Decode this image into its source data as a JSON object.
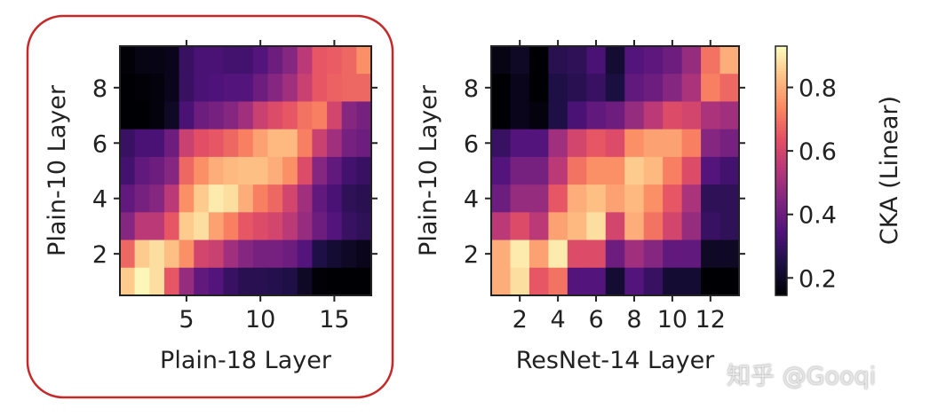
{
  "chart_data": [
    {
      "type": "heatmap",
      "xlabel": "Plain-18 Layer",
      "ylabel": "Plain-10 Layer",
      "xticks": [
        5,
        10,
        15
      ],
      "yticks": [
        2,
        4,
        6,
        8
      ],
      "x_range": [
        1,
        17
      ],
      "y_range": [
        1,
        9
      ],
      "highlighted": true,
      "highlight_color": "#c62828",
      "rows_top_to_bottom_layers": [
        9,
        8,
        7,
        6,
        5,
        4,
        3,
        2,
        1
      ],
      "values": [
        [
          0.15,
          0.17,
          0.17,
          0.18,
          0.3,
          0.33,
          0.33,
          0.32,
          0.32,
          0.35,
          0.4,
          0.45,
          0.55,
          0.65,
          0.66,
          0.68,
          0.75
        ],
        [
          0.14,
          0.15,
          0.16,
          0.18,
          0.3,
          0.33,
          0.34,
          0.35,
          0.35,
          0.4,
          0.45,
          0.5,
          0.58,
          0.65,
          0.67,
          0.68,
          0.68
        ],
        [
          0.13,
          0.14,
          0.16,
          0.2,
          0.33,
          0.4,
          0.42,
          0.45,
          0.5,
          0.58,
          0.62,
          0.65,
          0.7,
          0.72,
          0.6,
          0.45,
          0.42
        ],
        [
          0.3,
          0.33,
          0.33,
          0.4,
          0.58,
          0.63,
          0.65,
          0.68,
          0.72,
          0.78,
          0.82,
          0.82,
          0.72,
          0.58,
          0.5,
          0.42,
          0.4
        ],
        [
          0.32,
          0.38,
          0.4,
          0.45,
          0.68,
          0.75,
          0.8,
          0.82,
          0.83,
          0.83,
          0.8,
          0.75,
          0.62,
          0.45,
          0.38,
          0.32,
          0.3
        ],
        [
          0.38,
          0.42,
          0.45,
          0.55,
          0.75,
          0.85,
          0.9,
          0.88,
          0.8,
          0.72,
          0.68,
          0.6,
          0.5,
          0.38,
          0.33,
          0.28,
          0.27
        ],
        [
          0.45,
          0.55,
          0.55,
          0.65,
          0.85,
          0.88,
          0.78,
          0.72,
          0.65,
          0.62,
          0.6,
          0.55,
          0.48,
          0.4,
          0.35,
          0.3,
          0.28
        ],
        [
          0.68,
          0.85,
          0.88,
          0.83,
          0.75,
          0.6,
          0.58,
          0.5,
          0.45,
          0.42,
          0.42,
          0.4,
          0.35,
          0.25,
          0.22,
          0.2,
          0.18
        ],
        [
          0.85,
          0.92,
          0.88,
          0.65,
          0.48,
          0.38,
          0.35,
          0.3,
          0.27,
          0.27,
          0.26,
          0.25,
          0.2,
          0.15,
          0.14,
          0.14,
          0.13
        ]
      ]
    },
    {
      "type": "heatmap",
      "xlabel": "ResNet-14 Layer",
      "ylabel": "Plain-10 Layer",
      "xticks": [
        2,
        4,
        6,
        8,
        10,
        12
      ],
      "yticks": [
        2,
        4,
        6,
        8
      ],
      "x_range": [
        1,
        13
      ],
      "y_range": [
        1,
        9
      ],
      "highlighted": false,
      "rows_top_to_bottom_layers": [
        9,
        8,
        7,
        6,
        5,
        4,
        3,
        2,
        1
      ],
      "values": [
        [
          0.17,
          0.2,
          0.12,
          0.27,
          0.28,
          0.33,
          0.22,
          0.35,
          0.37,
          0.4,
          0.48,
          0.7,
          0.8
        ],
        [
          0.14,
          0.18,
          0.13,
          0.25,
          0.27,
          0.3,
          0.24,
          0.38,
          0.4,
          0.45,
          0.52,
          0.72,
          0.68
        ],
        [
          0.13,
          0.18,
          0.16,
          0.25,
          0.33,
          0.38,
          0.4,
          0.48,
          0.55,
          0.62,
          0.6,
          0.52,
          0.5
        ],
        [
          0.3,
          0.35,
          0.35,
          0.5,
          0.6,
          0.65,
          0.62,
          0.75,
          0.78,
          0.78,
          0.72,
          0.45,
          0.42
        ],
        [
          0.35,
          0.42,
          0.42,
          0.55,
          0.7,
          0.75,
          0.75,
          0.85,
          0.82,
          0.72,
          0.62,
          0.35,
          0.32
        ],
        [
          0.4,
          0.48,
          0.48,
          0.65,
          0.8,
          0.83,
          0.78,
          0.82,
          0.75,
          0.65,
          0.52,
          0.28,
          0.28
        ],
        [
          0.55,
          0.62,
          0.55,
          0.78,
          0.82,
          0.88,
          0.6,
          0.8,
          0.7,
          0.6,
          0.48,
          0.3,
          0.28
        ],
        [
          0.8,
          0.9,
          0.78,
          0.9,
          0.62,
          0.62,
          0.4,
          0.5,
          0.45,
          0.38,
          0.38,
          0.2,
          0.2
        ],
        [
          0.8,
          0.88,
          0.65,
          0.7,
          0.35,
          0.35,
          0.22,
          0.35,
          0.3,
          0.22,
          0.22,
          0.13,
          0.12
        ]
      ]
    }
  ],
  "colorbar": {
    "label": "CKA (Linear)",
    "colormap": "magma",
    "range": [
      0.145,
      0.93
    ],
    "ticks": [
      0.2,
      0.4,
      0.6,
      0.8
    ],
    "tick_labels": [
      "0.2",
      "0.4",
      "0.6",
      "0.8"
    ]
  },
  "watermark": "知乎 @Gooqi"
}
